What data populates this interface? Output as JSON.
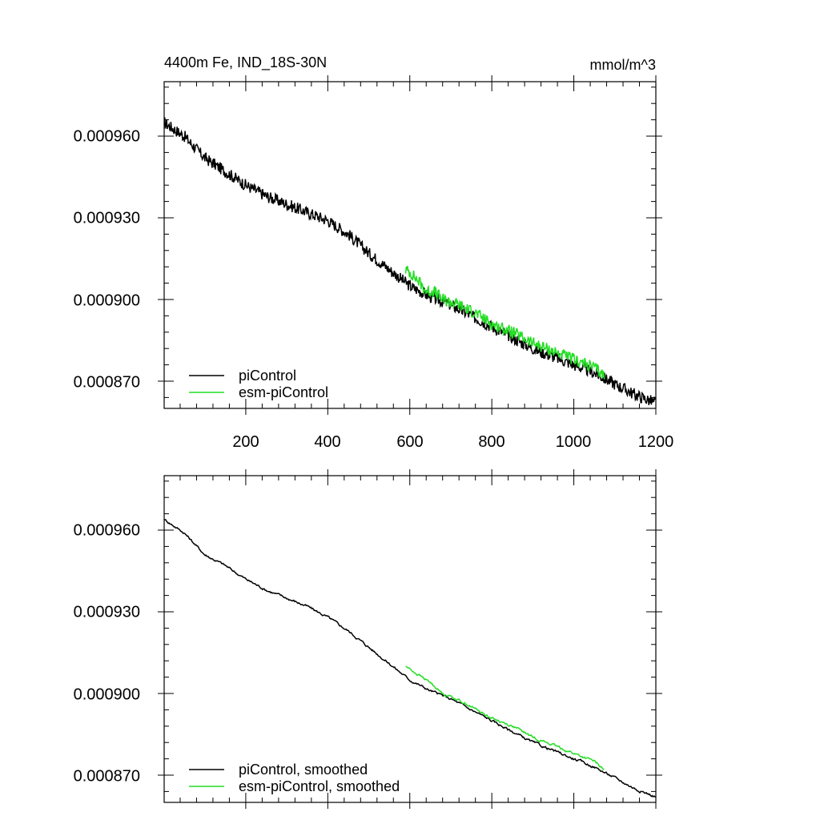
{
  "chart_data": [
    {
      "type": "line",
      "title": "4400m Fe, IND_18S-30N",
      "units": "mmol/m^3",
      "xlim": [
        1,
        1200
      ],
      "ylim": [
        0.00086,
        0.00098
      ],
      "xticks": [
        200,
        400,
        600,
        800,
        1000,
        1200
      ],
      "xticklabels": [
        "200",
        "400",
        "600",
        "800",
        "1000",
        "1200"
      ],
      "yticks": [
        0.00087,
        0.0009,
        0.00093,
        0.00096
      ],
      "yticklabels": [
        "0.000870",
        "0.000900",
        "0.000930",
        "0.000960"
      ],
      "legend_position": "bottom-left",
      "series": [
        {
          "name": "piControl",
          "color": "#000000",
          "points": [
            [
              1,
              0.000965
            ],
            [
              50,
              0.00096
            ],
            [
              100,
              0.000952
            ],
            [
              150,
              0.000947
            ],
            [
              200,
              0.000942
            ],
            [
              250,
              0.000938
            ],
            [
              300,
              0.000935
            ],
            [
              350,
              0.000932
            ],
            [
              400,
              0.000929
            ],
            [
              450,
              0.000924
            ],
            [
              500,
              0.000917
            ],
            [
              550,
              0.000911
            ],
            [
              600,
              0.000905
            ],
            [
              650,
              0.000901
            ],
            [
              700,
              0.000898
            ],
            [
              750,
              0.000894
            ],
            [
              800,
              0.00089
            ],
            [
              850,
              0.000886
            ],
            [
              900,
              0.000882
            ],
            [
              950,
              0.000879
            ],
            [
              1000,
              0.000876
            ],
            [
              1050,
              0.000873
            ],
            [
              1100,
              0.000869
            ],
            [
              1150,
              0.000865
            ],
            [
              1200,
              0.000862
            ]
          ]
        },
        {
          "name": "esm-piControl",
          "color": "#22dd22",
          "points": [
            [
              590,
              0.000911
            ],
            [
              600,
              0.00091
            ],
            [
              620,
              0.000907
            ],
            [
              640,
              0.000903
            ],
            [
              660,
              0.000903
            ],
            [
              680,
              0.0009
            ],
            [
              700,
              0.000899
            ],
            [
              720,
              0.000898
            ],
            [
              760,
              0.000895
            ],
            [
              800,
              0.000891
            ],
            [
              850,
              0.000888
            ],
            [
              900,
              0.000884
            ],
            [
              950,
              0.000881
            ],
            [
              1000,
              0.000878
            ],
            [
              1050,
              0.000875
            ],
            [
              1075,
              0.000872
            ]
          ]
        }
      ]
    },
    {
      "type": "line",
      "title": "",
      "xlim": [
        1,
        1200
      ],
      "ylim": [
        0.00086,
        0.00098
      ],
      "xticks": [
        200,
        400,
        600,
        800,
        1000,
        1200
      ],
      "yticks": [
        0.00087,
        0.0009,
        0.00093,
        0.00096
      ],
      "yticklabels": [
        "0.000870",
        "0.000900",
        "0.000930",
        "0.000960"
      ],
      "legend_position": "bottom-left",
      "series": [
        {
          "name": "piControl, smoothed",
          "color": "#000000",
          "points": [
            [
              1,
              0.000964
            ],
            [
              50,
              0.000959
            ],
            [
              100,
              0.000951
            ],
            [
              150,
              0.000947
            ],
            [
              200,
              0.000942
            ],
            [
              250,
              0.000938
            ],
            [
              300,
              0.000935
            ],
            [
              350,
              0.000932
            ],
            [
              400,
              0.000928
            ],
            [
              450,
              0.000923
            ],
            [
              500,
              0.000917
            ],
            [
              550,
              0.000911
            ],
            [
              600,
              0.000905
            ],
            [
              650,
              0.000901
            ],
            [
              700,
              0.000898
            ],
            [
              750,
              0.000894
            ],
            [
              800,
              0.00089
            ],
            [
              850,
              0.000886
            ],
            [
              900,
              0.000882
            ],
            [
              950,
              0.000879
            ],
            [
              1000,
              0.000876
            ],
            [
              1050,
              0.000873
            ],
            [
              1100,
              0.000869
            ],
            [
              1150,
              0.000865
            ],
            [
              1200,
              0.000862
            ]
          ]
        },
        {
          "name": "esm-piControl, smoothed",
          "color": "#22dd22",
          "points": [
            [
              590,
              0.00091
            ],
            [
              620,
              0.000907
            ],
            [
              650,
              0.000904
            ],
            [
              680,
              0.0009
            ],
            [
              700,
              0.000899
            ],
            [
              740,
              0.000896
            ],
            [
              800,
              0.000891
            ],
            [
              850,
              0.000888
            ],
            [
              900,
              0.000884
            ],
            [
              950,
              0.000881
            ],
            [
              1000,
              0.000878
            ],
            [
              1050,
              0.000875
            ],
            [
              1075,
              0.000872
            ]
          ]
        }
      ]
    }
  ]
}
